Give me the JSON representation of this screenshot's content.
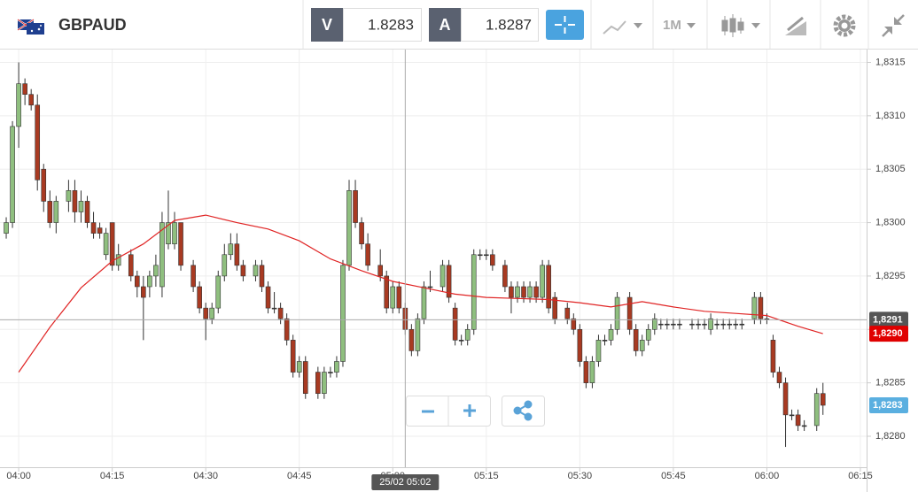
{
  "toolbar": {
    "symbol": "GBPAUD",
    "bid_label": "V",
    "bid": 1.8283,
    "ask_label": "A",
    "ask": 1.8287,
    "interval": "1M"
  },
  "chart_data": {
    "type": "candlestick",
    "x": [
      "03:58",
      "03:59",
      "04:00",
      "04:01",
      "04:02",
      "04:03",
      "04:04",
      "04:05",
      "04:06",
      "04:08",
      "04:09",
      "04:10",
      "04:11",
      "04:12",
      "04:13",
      "04:14",
      "04:15",
      "04:16",
      "04:18",
      "04:19",
      "04:20",
      "04:21",
      "04:22",
      "04:23",
      "04:24",
      "04:25",
      "04:26",
      "04:28",
      "04:29",
      "04:30",
      "04:31",
      "04:32",
      "04:33",
      "04:34",
      "04:35",
      "04:36",
      "04:38",
      "04:39",
      "04:40",
      "04:41",
      "04:42",
      "04:43",
      "04:44",
      "04:45",
      "04:46",
      "04:48",
      "04:49",
      "04:50",
      "04:51",
      "04:52",
      "04:53",
      "04:54",
      "04:55",
      "04:56",
      "04:58",
      "04:59",
      "05:00",
      "05:01",
      "05:02",
      "05:03",
      "05:04",
      "05:05",
      "05:06",
      "05:08",
      "05:09",
      "05:10",
      "05:11",
      "05:12",
      "05:13",
      "05:14",
      "05:15",
      "05:16",
      "05:18",
      "05:19",
      "05:20",
      "05:21",
      "05:22",
      "05:23",
      "05:24",
      "05:25",
      "05:26",
      "05:28",
      "05:29",
      "05:30",
      "05:31",
      "05:32",
      "05:33",
      "05:34",
      "05:35",
      "05:36",
      "05:38",
      "05:39",
      "05:40",
      "05:41",
      "05:42",
      "05:43",
      "05:44",
      "05:45",
      "05:46",
      "05:48",
      "05:49",
      "05:50",
      "05:51",
      "05:52",
      "05:53",
      "05:54",
      "05:55",
      "05:56",
      "05:58",
      "05:59",
      "06:00",
      "06:01",
      "06:02",
      "06:03",
      "06:04",
      "06:05",
      "06:06",
      "06:08",
      "06:09"
    ],
    "open": [
      1.8299,
      1.83,
      1.8309,
      1.8313,
      1.8312,
      1.8311,
      1.8305,
      1.8302,
      1.83,
      1.8302,
      1.8303,
      1.8301,
      1.8302,
      1.83,
      1.82995,
      1.8297,
      1.83,
      1.8296,
      1.8297,
      1.8295,
      1.8294,
      1.8294,
      1.8295,
      1.8294,
      1.8298,
      1.8298,
      1.83,
      1.8296,
      1.8294,
      1.8292,
      1.8291,
      1.8292,
      1.8295,
      1.8297,
      1.8298,
      1.8296,
      1.8295,
      1.8296,
      1.8294,
      1.8292,
      1.8292,
      1.8291,
      1.8289,
      1.8286,
      1.8287,
      1.8286,
      1.8284,
      1.8286,
      1.8286,
      1.8287,
      1.8296,
      1.8303,
      1.83,
      1.8298,
      1.8296,
      1.8295,
      1.8292,
      1.8294,
      1.8292,
      1.829,
      1.8288,
      1.8291,
      1.8294,
      1.8294,
      1.8296,
      1.8292,
      1.8289,
      1.8289,
      1.829,
      1.8297,
      1.8297,
      1.8297,
      1.8296,
      1.8294,
      1.8293,
      1.8294,
      1.8293,
      1.8294,
      1.8293,
      1.8296,
      1.8293,
      1.8292,
      1.8291,
      1.829,
      1.8287,
      1.8285,
      1.8287,
      1.8289,
      1.8289,
      1.829,
      1.8293,
      1.829,
      1.8288,
      1.8289,
      1.829,
      1.82905,
      1.82905,
      1.82905,
      1.82905,
      1.82905,
      1.82905,
      1.82905,
      1.829,
      1.82905,
      1.82905,
      1.82905,
      1.82905,
      1.82905,
      1.8291,
      1.8293,
      1.8291,
      1.8289,
      1.8286,
      1.8285,
      1.8282,
      1.8282,
      1.8281,
      1.8281,
      1.8284
    ],
    "high": [
      1.83005,
      1.83095,
      1.8315,
      1.83135,
      1.83125,
      1.8312,
      1.83055,
      1.8303,
      1.83025,
      1.8304,
      1.8304,
      1.8303,
      1.83025,
      1.8301,
      1.83,
      1.82995,
      1.83,
      1.8298,
      1.82975,
      1.82955,
      1.8295,
      1.82955,
      1.8297,
      1.8301,
      1.8303,
      1.8301,
      1.83,
      1.82965,
      1.82945,
      1.82925,
      1.82925,
      1.82955,
      1.8298,
      1.8299,
      1.8299,
      1.82965,
      1.82965,
      1.82965,
      1.82945,
      1.82935,
      1.82925,
      1.82915,
      1.82895,
      1.82875,
      1.82875,
      1.82865,
      1.82865,
      1.82865,
      1.82875,
      1.82965,
      1.8304,
      1.8304,
      1.83005,
      1.8299,
      1.82975,
      1.82955,
      1.82945,
      1.82945,
      1.82925,
      1.82905,
      1.82915,
      1.82945,
      1.82955,
      1.82965,
      1.82965,
      1.82925,
      1.82895,
      1.82905,
      1.82975,
      1.82975,
      1.82975,
      1.82975,
      1.82965,
      1.82945,
      1.82945,
      1.82945,
      1.82945,
      1.82945,
      1.82965,
      1.82965,
      1.82935,
      1.82925,
      1.82915,
      1.82905,
      1.82875,
      1.82875,
      1.82895,
      1.82895,
      1.82905,
      1.82935,
      1.82935,
      1.82905,
      1.82895,
      1.82905,
      1.82915,
      1.8291,
      1.8291,
      1.8291,
      1.8291,
      1.8291,
      1.8291,
      1.8291,
      1.82915,
      1.8291,
      1.8291,
      1.8291,
      1.8291,
      1.8291,
      1.82935,
      1.82935,
      1.82915,
      1.82895,
      1.82865,
      1.82855,
      1.82825,
      1.82825,
      1.82815,
      1.82845,
      1.8285
    ],
    "low": [
      1.82985,
      1.82995,
      1.8307,
      1.8311,
      1.83105,
      1.8303,
      1.8301,
      1.82995,
      1.8299,
      1.8301,
      1.83,
      1.83,
      1.82995,
      1.82985,
      1.82985,
      1.82965,
      1.82955,
      1.82955,
      1.82945,
      1.8293,
      1.8289,
      1.8293,
      1.8294,
      1.8293,
      1.82975,
      1.82975,
      1.82955,
      1.82935,
      1.82915,
      1.8289,
      1.82905,
      1.82915,
      1.82945,
      1.82965,
      1.82955,
      1.82945,
      1.82945,
      1.82935,
      1.82915,
      1.82915,
      1.82905,
      1.82885,
      1.82855,
      1.82855,
      1.82835,
      1.82835,
      1.82835,
      1.82855,
      1.82855,
      1.82865,
      1.82955,
      1.82995,
      1.82975,
      1.82955,
      1.82945,
      1.82915,
      1.82915,
      1.82915,
      1.82895,
      1.82875,
      1.82875,
      1.82905,
      1.82935,
      1.82935,
      1.82925,
      1.82885,
      1.82885,
      1.82885,
      1.82895,
      1.82965,
      1.82965,
      1.82955,
      1.82935,
      1.82915,
      1.82925,
      1.82925,
      1.82925,
      1.82925,
      1.82925,
      1.82915,
      1.82905,
      1.82905,
      1.82895,
      1.82865,
      1.82845,
      1.82845,
      1.82865,
      1.82885,
      1.82885,
      1.82895,
      1.82895,
      1.82875,
      1.82875,
      1.82885,
      1.82895,
      1.829,
      1.829,
      1.829,
      1.829,
      1.829,
      1.829,
      1.829,
      1.82895,
      1.829,
      1.829,
      1.829,
      1.829,
      1.829,
      1.82905,
      1.82905,
      1.82905,
      1.82855,
      1.82845,
      1.8279,
      1.82815,
      1.82805,
      1.82805,
      1.82805,
      1.8282
    ],
    "close": [
      1.83,
      1.8309,
      1.8313,
      1.8312,
      1.8311,
      1.8304,
      1.8302,
      1.83,
      1.8302,
      1.8303,
      1.8301,
      1.8302,
      1.83,
      1.8299,
      1.8299,
      1.8299,
      1.8296,
      1.8297,
      1.8295,
      1.8294,
      1.8293,
      1.8295,
      1.8296,
      1.83,
      1.83,
      1.83,
      1.8296,
      1.8294,
      1.8292,
      1.8291,
      1.8292,
      1.8295,
      1.8297,
      1.8298,
      1.8296,
      1.8295,
      1.8296,
      1.8294,
      1.8292,
      1.8292,
      1.8291,
      1.8289,
      1.8286,
      1.8287,
      1.8284,
      1.8284,
      1.8286,
      1.8286,
      1.8287,
      1.8296,
      1.8303,
      1.83,
      1.8298,
      1.8296,
      1.8295,
      1.8292,
      1.8294,
      1.8292,
      1.829,
      1.8288,
      1.8291,
      1.8294,
      1.8294,
      1.8296,
      1.8293,
      1.8289,
      1.8289,
      1.829,
      1.8297,
      1.8297,
      1.8297,
      1.8296,
      1.8294,
      1.8293,
      1.8294,
      1.8293,
      1.8294,
      1.8293,
      1.8296,
      1.8292,
      1.8291,
      1.8291,
      1.829,
      1.8287,
      1.8285,
      1.8287,
      1.8289,
      1.8289,
      1.829,
      1.8293,
      1.829,
      1.8288,
      1.8289,
      1.829,
      1.8291,
      1.82905,
      1.82905,
      1.82905,
      1.82905,
      1.82905,
      1.82905,
      1.82905,
      1.8291,
      1.82905,
      1.82905,
      1.82905,
      1.82905,
      1.82905,
      1.8293,
      1.8291,
      1.8291,
      1.8286,
      1.8285,
      1.8282,
      1.8282,
      1.8281,
      1.8281,
      1.8284,
      1.82829
    ],
    "up_color": "#8fbf7f",
    "down_color": "#a83a22",
    "ma": {
      "color": "#e02424",
      "x": [
        "04:00",
        "04:05",
        "04:10",
        "04:15",
        "04:20",
        "04:25",
        "04:30",
        "04:35",
        "04:40",
        "04:45",
        "04:50",
        "04:55",
        "05:00",
        "05:05",
        "05:10",
        "05:15",
        "05:20",
        "05:25",
        "05:30",
        "05:35",
        "05:40",
        "05:45",
        "05:50",
        "05:55",
        "06:00",
        "06:05",
        "06:09"
      ],
      "values": [
        1.8286,
        1.82902,
        1.82939,
        1.82964,
        1.8298,
        1.83002,
        1.83007,
        1.83,
        1.82994,
        1.82983,
        1.82966,
        1.82955,
        1.82945,
        1.82939,
        1.82933,
        1.8293,
        1.82929,
        1.82928,
        1.82925,
        1.82921,
        1.82926,
        1.82921,
        1.82917,
        1.82915,
        1.82913,
        1.82903,
        1.82896
      ]
    },
    "ylim": [
      1.82771,
      1.83162
    ],
    "yticks": [
      {
        "value": 1.828,
        "label": "1,8280"
      },
      {
        "value": 1.8285,
        "label": "1,8285"
      },
      {
        "value": 1.829,
        "label": "1,8290"
      },
      {
        "value": 1.8295,
        "label": "1,8295"
      },
      {
        "value": 1.83,
        "label": "1,8300"
      },
      {
        "value": 1.8305,
        "label": "1,8305"
      },
      {
        "value": 1.831,
        "label": "1,8310"
      },
      {
        "value": 1.8315,
        "label": "1,8315"
      }
    ],
    "xlim": [
      "03:57",
      "06:16"
    ],
    "xticks": [
      "04:00",
      "04:15",
      "04:30",
      "04:45",
      "05:00",
      "05:15",
      "05:30",
      "05:45",
      "06:00",
      "06:15"
    ],
    "grid": true,
    "crosshair": {
      "x": "05:02",
      "x_label": "25/02 05:02",
      "y": {
        "value": 1.82909,
        "label": "1,8291"
      }
    },
    "price_labels": [
      {
        "value": 1.82896,
        "label": "1,8290",
        "color": "#e00000"
      },
      {
        "value": 1.82829,
        "label": "1,8283",
        "color": "#5aafe0"
      }
    ]
  }
}
